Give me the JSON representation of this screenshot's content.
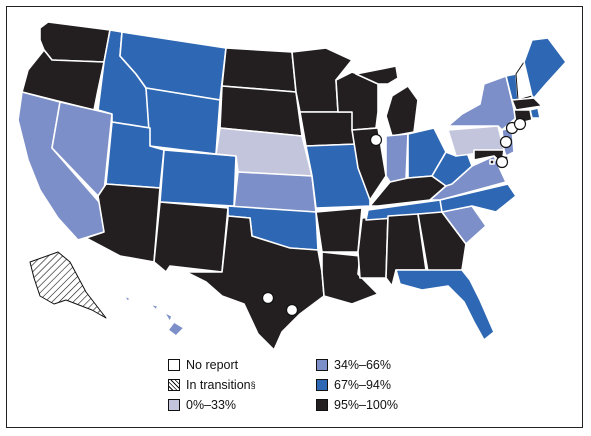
{
  "colors": {
    "no_report": "#ffffff",
    "transition": "hatched",
    "c0_33": "#c3c5dd",
    "c34_66": "#7c8fc8",
    "c67_94": "#2e67b3",
    "c95_100": "#231f20"
  },
  "legend": [
    {
      "key": "no_report",
      "label": "No report",
      "sup": ""
    },
    {
      "key": "transition",
      "label": "In transition",
      "sup": "§"
    },
    {
      "key": "c0_33",
      "label": "0%–33%",
      "sup": ""
    },
    {
      "key": "c34_66",
      "label": "34%–66%",
      "sup": ""
    },
    {
      "key": "c67_94",
      "label": "67%–94%",
      "sup": ""
    },
    {
      "key": "c95_100",
      "label": "95%–100%",
      "sup": ""
    }
  ],
  "state_categories": {
    "WA": "c95_100",
    "OR": "c95_100",
    "CA": "c34_66",
    "NV": "c34_66",
    "ID": "c67_94",
    "MT": "c67_94",
    "WY": "c67_94",
    "UT": "c67_94",
    "AZ": "c95_100",
    "CO": "c67_94",
    "NM": "c95_100",
    "ND": "c95_100",
    "SD": "c95_100",
    "NE": "c0_33",
    "KS": "c34_66",
    "OK": "c67_94",
    "TX": "c95_100",
    "MN": "c95_100",
    "IA": "c95_100",
    "MO": "c67_94",
    "AR": "c95_100",
    "LA": "c95_100",
    "WI": "c95_100",
    "IL": "c95_100",
    "MS": "c95_100",
    "MI": "c95_100",
    "IN": "c34_66",
    "OH": "c67_94",
    "KY": "c95_100",
    "TN": "c67_94",
    "AL": "c95_100",
    "GA": "c95_100",
    "FL": "c67_94",
    "SC": "c34_66",
    "NC": "c67_94",
    "VA": "c34_66",
    "WV": "c67_94",
    "PA": "c0_33",
    "NY": "c34_66",
    "VT": "c67_94",
    "NH": "no_report",
    "ME": "c67_94",
    "MA": "c95_100",
    "RI": "c67_94",
    "CT": "c95_100",
    "NJ": "c34_66",
    "DE": "c95_100",
    "MD": "c95_100",
    "DC": "c95_100",
    "AK": "transition",
    "HI": "c34_66"
  }
}
